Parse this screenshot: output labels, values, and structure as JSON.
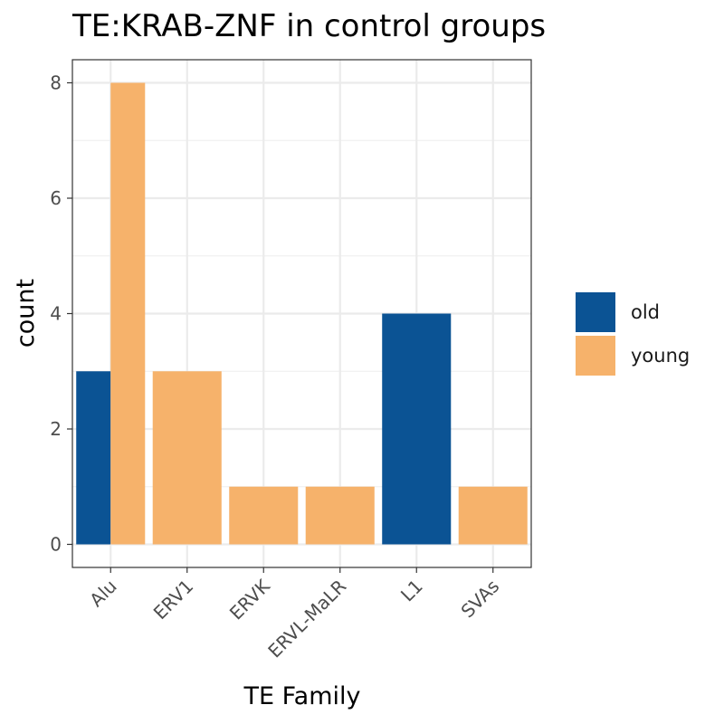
{
  "chart_data": {
    "type": "bar",
    "title": "TE:KRAB-ZNF in control groups",
    "xlabel": "TE Family",
    "ylabel": "count",
    "categories": [
      "Alu",
      "ERV1",
      "ERVK",
      "ERVL-MaLR",
      "L1",
      "SVAs"
    ],
    "series": [
      {
        "name": "old",
        "color": "#0B5394",
        "values": [
          3,
          0,
          0,
          0,
          4,
          0
        ]
      },
      {
        "name": "young",
        "color": "#F6B26B",
        "values": [
          8,
          3,
          1,
          1,
          0,
          1
        ]
      }
    ],
    "bar_layout": "dodge",
    "ylim": [
      -0.4,
      8.4
    ],
    "yticks": [
      0,
      2,
      4,
      6,
      8
    ],
    "grid": true,
    "legend_position": "right",
    "x_tick_rotation": 45
  }
}
